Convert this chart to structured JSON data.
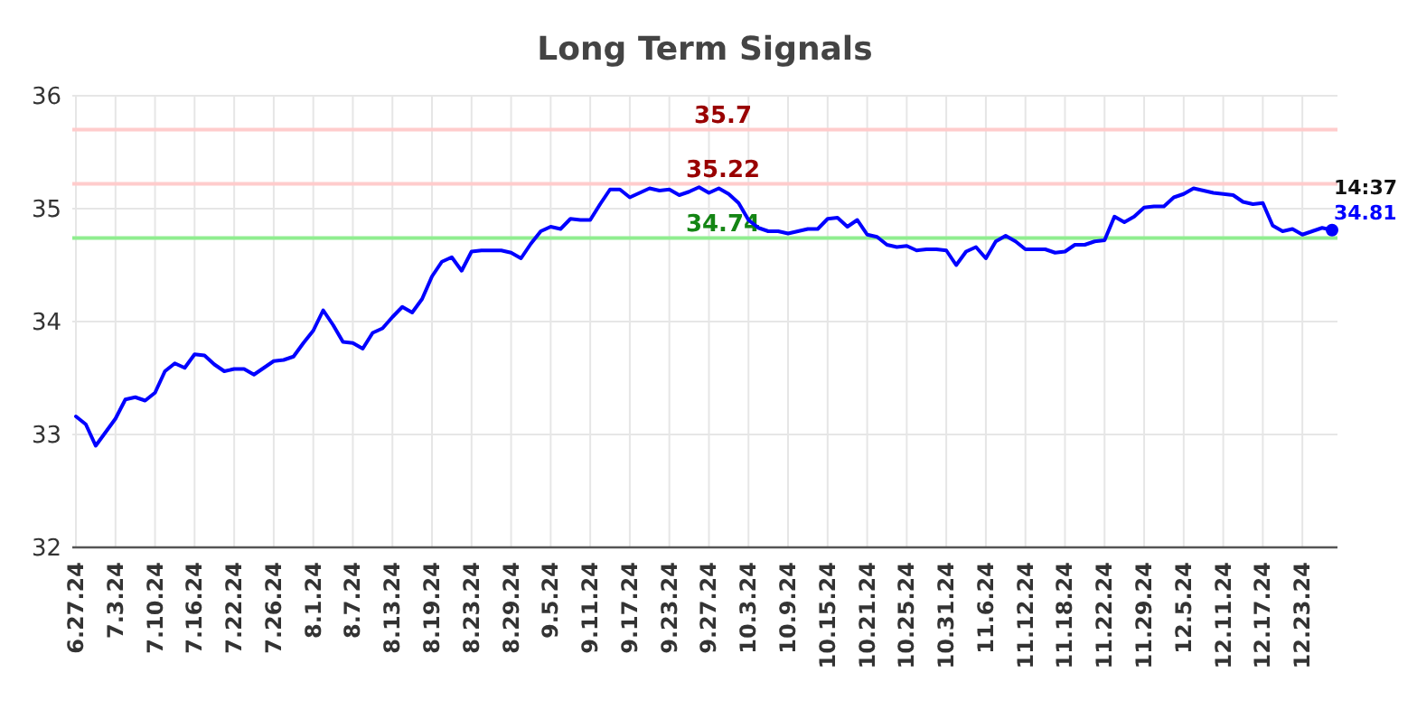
{
  "chart_data": {
    "type": "line",
    "title": "Long Term Signals",
    "categories": [
      "6.27.24",
      null,
      null,
      null,
      "7.3.24",
      null,
      null,
      null,
      "7.10.24",
      null,
      null,
      null,
      "7.16.24",
      null,
      null,
      null,
      "7.22.24",
      null,
      null,
      null,
      "7.26.24",
      null,
      null,
      null,
      "8.1.24",
      null,
      null,
      null,
      "8.7.24",
      null,
      null,
      null,
      "8.13.24",
      null,
      null,
      null,
      "8.19.24",
      null,
      null,
      null,
      "8.23.24",
      null,
      null,
      null,
      "8.29.24",
      null,
      null,
      null,
      "9.5.24",
      null,
      null,
      null,
      "9.11.24",
      null,
      null,
      null,
      "9.17.24",
      null,
      null,
      null,
      "9.23.24",
      null,
      null,
      null,
      "9.27.24",
      null,
      null,
      null,
      "10.3.24",
      null,
      null,
      null,
      "10.9.24",
      null,
      null,
      null,
      "10.15.24",
      null,
      null,
      null,
      "10.21.24",
      null,
      null,
      null,
      "10.25.24",
      null,
      null,
      null,
      "10.31.24",
      null,
      null,
      null,
      "11.6.24",
      null,
      null,
      null,
      "11.12.24",
      null,
      null,
      null,
      "11.18.24",
      null,
      null,
      null,
      "11.22.24",
      null,
      null,
      null,
      "11.29.24",
      null,
      null,
      null,
      "12.5.24",
      null,
      null,
      null,
      "12.11.24",
      null,
      null,
      null,
      "12.17.24",
      null,
      null,
      null,
      "12.23.24",
      null,
      null,
      null
    ],
    "series": [
      {
        "color": "#0000ff",
        "values": [
          33.16,
          33.09,
          32.9,
          33.02,
          33.14,
          33.31,
          33.33,
          33.3,
          33.37,
          33.56,
          33.63,
          33.59,
          33.71,
          33.7,
          33.62,
          33.56,
          33.58,
          33.58,
          33.53,
          33.59,
          33.65,
          33.66,
          33.69,
          33.81,
          33.92,
          34.1,
          33.97,
          33.82,
          33.81,
          33.76,
          33.9,
          33.94,
          34.04,
          34.13,
          34.08,
          34.2,
          34.4,
          34.53,
          34.57,
          34.45,
          34.62,
          34.63,
          34.63,
          34.63,
          34.61,
          34.56,
          34.69,
          34.8,
          34.84,
          34.82,
          34.91,
          34.9,
          34.9,
          35.04,
          35.17,
          35.17,
          35.1,
          35.14,
          35.18,
          35.16,
          35.17,
          35.12,
          35.15,
          35.19,
          35.14,
          35.18,
          35.13,
          35.05,
          34.9,
          34.83,
          34.8,
          34.8,
          34.78,
          34.8,
          34.82,
          34.82,
          34.91,
          34.92,
          34.84,
          34.9,
          34.77,
          34.75,
          34.68,
          34.66,
          34.67,
          34.63,
          34.64,
          34.64,
          34.63,
          34.5,
          34.62,
          34.66,
          34.56,
          34.71,
          34.76,
          34.71,
          34.64,
          34.64,
          34.64,
          34.61,
          34.62,
          34.68,
          34.68,
          34.71,
          34.72,
          34.93,
          34.88,
          34.93,
          35.01,
          35.02,
          35.02,
          35.1,
          35.13,
          35.18,
          35.16,
          35.14,
          35.13,
          35.12,
          35.06,
          35.04,
          35.05,
          34.85,
          34.8,
          34.82,
          34.77,
          34.8,
          34.83,
          34.81
        ],
        "value_labels": [
          null,
          null,
          null,
          null,
          null,
          null,
          null,
          null,
          null,
          null,
          null,
          null,
          null,
          null,
          null,
          null,
          null,
          null,
          null,
          null,
          null,
          null,
          null,
          null,
          null,
          null,
          null,
          null,
          null,
          null,
          null,
          null,
          null,
          null,
          null,
          null,
          null,
          null,
          null,
          null,
          null,
          null,
          null,
          null,
          null,
          null,
          null,
          null,
          null,
          null,
          null,
          null,
          null,
          null,
          null,
          null,
          null,
          null,
          null,
          null,
          null,
          null,
          null,
          null,
          null,
          null,
          null,
          null,
          null,
          null,
          null,
          null,
          null,
          null,
          null,
          null,
          null,
          null,
          null,
          null,
          null,
          null,
          null,
          null,
          null,
          null,
          null,
          null,
          null,
          null,
          null,
          null,
          null,
          null,
          null,
          null,
          null,
          null,
          null,
          null,
          null,
          null,
          null,
          null,
          null,
          null,
          null,
          null,
          null,
          null,
          null,
          null,
          null,
          null,
          null,
          null,
          null,
          null,
          null,
          null,
          null,
          null,
          null,
          null,
          null,
          null,
          null,
          "34.81"
        ]
      }
    ],
    "ylim": [
      32,
      36
    ],
    "yticks": [
      32,
      33,
      34,
      35,
      36
    ],
    "grid": true,
    "marker": "none",
    "line_style": "solid",
    "ref_lines": [
      {
        "axis": "y",
        "value": 35.7,
        "label": "35.7",
        "color": "#ffcccc"
      },
      {
        "axis": "y",
        "value": 35.22,
        "label": "35.22",
        "color": "#ffcccc"
      },
      {
        "axis": "y",
        "value": 34.74,
        "label": "34.74",
        "color": "#90ee90"
      }
    ],
    "annotations": [
      "14:37"
    ]
  }
}
